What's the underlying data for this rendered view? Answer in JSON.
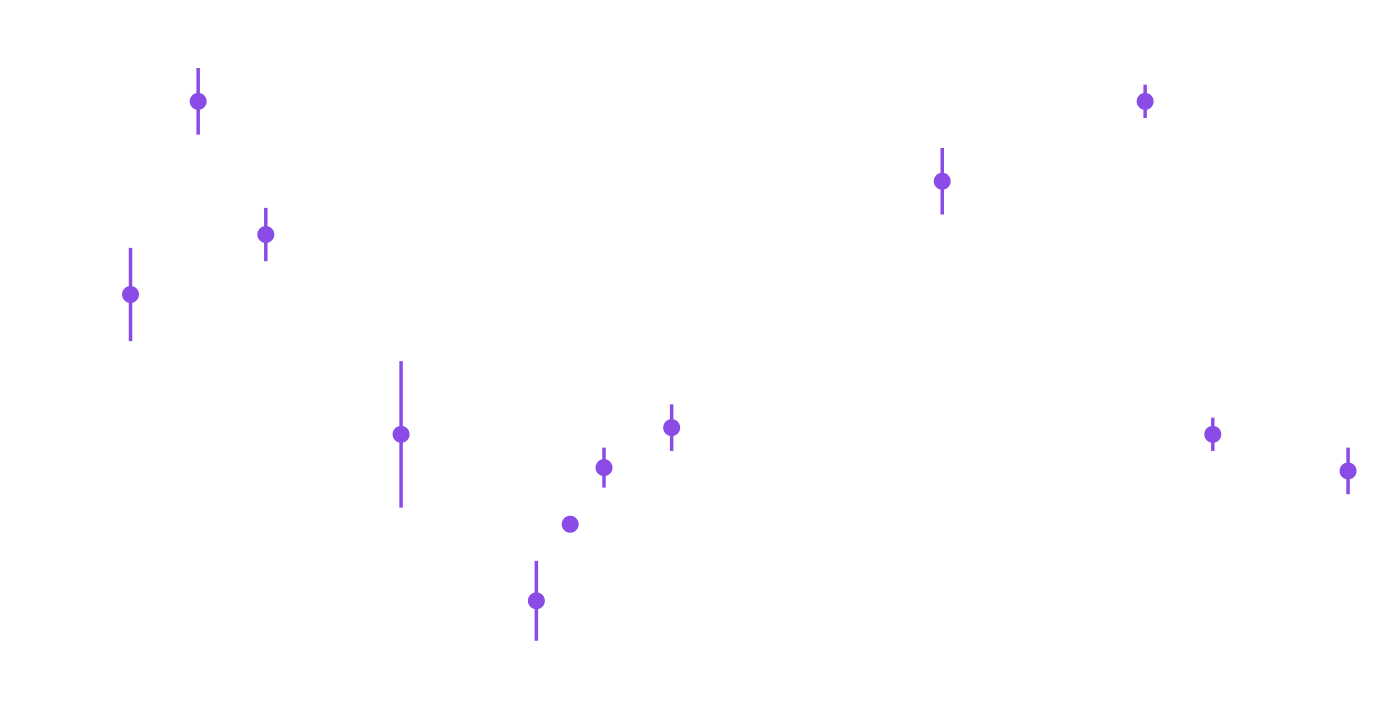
{
  "chart_data": {
    "type": "scatter",
    "title": "",
    "xlabel": "",
    "ylabel": "",
    "grid": false,
    "legend": "none",
    "color": "#8a4be6",
    "xlim": [
      0,
      20
    ],
    "ylim": [
      0,
      10
    ],
    "points": [
      {
        "x": 1.9,
        "y": 6.3,
        "err_low": 0.7,
        "err_high": 0.7
      },
      {
        "x": 2.9,
        "y": 9.2,
        "err_low": 0.5,
        "err_high": 0.5
      },
      {
        "x": 3.9,
        "y": 7.2,
        "err_low": 0.4,
        "err_high": 0.4
      },
      {
        "x": 5.9,
        "y": 4.2,
        "err_low": 1.1,
        "err_high": 1.1
      },
      {
        "x": 7.9,
        "y": 1.7,
        "err_low": 0.6,
        "err_high": 0.6
      },
      {
        "x": 8.4,
        "y": 2.85,
        "err_low": 0.0,
        "err_high": 0.0
      },
      {
        "x": 8.9,
        "y": 3.7,
        "err_low": 0.3,
        "err_high": 0.3
      },
      {
        "x": 9.9,
        "y": 4.3,
        "err_low": 0.35,
        "err_high": 0.35
      },
      {
        "x": 13.9,
        "y": 8.0,
        "err_low": 0.5,
        "err_high": 0.5
      },
      {
        "x": 16.9,
        "y": 9.2,
        "err_low": 0.25,
        "err_high": 0.25
      },
      {
        "x": 17.9,
        "y": 4.2,
        "err_low": 0.25,
        "err_high": 0.25
      },
      {
        "x": 19.9,
        "y": 3.65,
        "err_low": 0.35,
        "err_high": 0.35
      }
    ]
  }
}
